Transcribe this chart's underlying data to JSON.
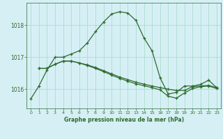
{
  "title": "Graphe pression niveau de la mer (hPa)",
  "background_color": "#d6eff5",
  "grid_color": "#aaddcc",
  "line_color": "#2d6a2d",
  "xlim": [
    -0.5,
    23.5
  ],
  "ylim": [
    1015.4,
    1018.7
  ],
  "yticks": [
    1016,
    1017,
    1018
  ],
  "xticks": [
    0,
    1,
    2,
    3,
    4,
    5,
    6,
    7,
    8,
    9,
    10,
    11,
    12,
    13,
    14,
    15,
    16,
    17,
    18,
    19,
    20,
    21,
    22,
    23
  ],
  "series1": {
    "x": [
      0,
      1,
      2,
      3,
      4,
      5,
      6,
      7,
      8,
      9,
      10,
      11,
      12,
      13,
      14,
      15,
      16,
      17,
      18,
      19,
      20,
      21,
      22,
      23
    ],
    "y": [
      1015.7,
      1016.1,
      1016.6,
      1017.0,
      1017.0,
      1017.1,
      1017.2,
      1017.45,
      1017.8,
      1018.1,
      1018.35,
      1018.42,
      1018.38,
      1018.15,
      1017.6,
      1017.2,
      1016.35,
      1015.85,
      1015.9,
      1016.1,
      1016.1,
      1016.15,
      1016.28,
      1016.05
    ]
  },
  "series2": {
    "x": [
      1,
      2,
      3,
      4,
      5,
      6,
      7,
      8,
      9,
      10,
      11,
      12,
      13,
      14,
      15,
      16,
      17,
      18,
      19,
      20,
      21,
      22,
      23
    ],
    "y": [
      1016.65,
      1016.65,
      1016.78,
      1016.88,
      1016.88,
      1016.82,
      1016.76,
      1016.68,
      1016.58,
      1016.48,
      1016.38,
      1016.3,
      1016.22,
      1016.16,
      1016.1,
      1016.05,
      1016.0,
      1015.96,
      1015.96,
      1016.08,
      1016.1,
      1016.12,
      1016.05
    ]
  },
  "series3": {
    "x": [
      1,
      2,
      3,
      4,
      5,
      6,
      7,
      8,
      9,
      10,
      11,
      12,
      13,
      14,
      15,
      16,
      17,
      18,
      19,
      20,
      21,
      22,
      23
    ],
    "y": [
      1016.65,
      1016.65,
      1016.78,
      1016.88,
      1016.88,
      1016.82,
      1016.74,
      1016.65,
      1016.55,
      1016.44,
      1016.34,
      1016.25,
      1016.17,
      1016.11,
      1016.05,
      1015.98,
      1015.78,
      1015.72,
      1015.88,
      1016.02,
      1016.08,
      1016.1,
      1016.02
    ]
  }
}
